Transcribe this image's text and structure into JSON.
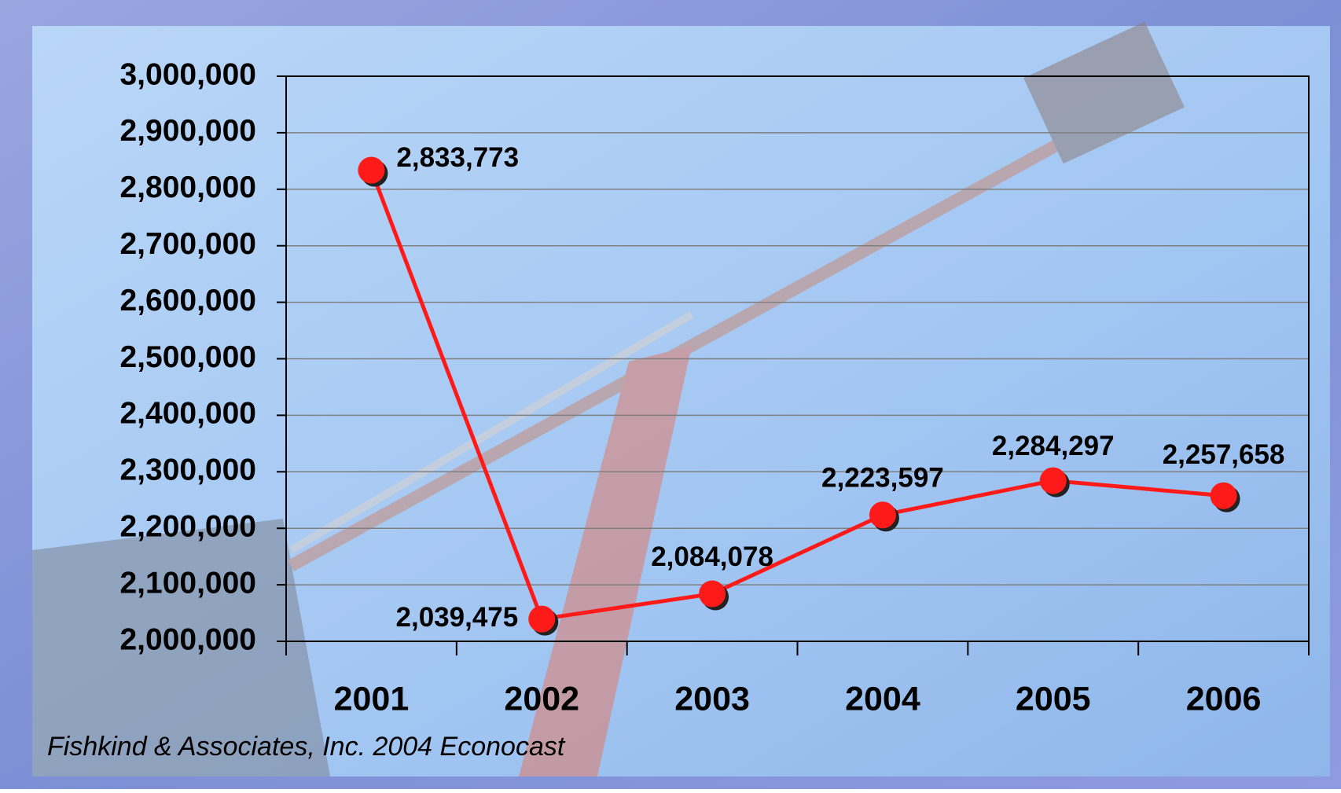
{
  "chart_data": {
    "type": "line",
    "categories": [
      "2001",
      "2002",
      "2003",
      "2004",
      "2005",
      "2006"
    ],
    "series": [
      {
        "color": "#ff1a1a",
        "values": [
          2833773,
          2039475,
          2084078,
          2223597,
          2284297,
          2257658
        ],
        "value_labels": [
          "2,833,773",
          "2,039,475",
          "2,084,078",
          "2,223,597",
          "2,284,297",
          "2,257,658"
        ]
      }
    ],
    "ylim": [
      2000000,
      3000000
    ],
    "yticks": [
      {
        "value": 2000000,
        "label": "2,000,000"
      },
      {
        "value": 2100000,
        "label": "2,100,000"
      },
      {
        "value": 2200000,
        "label": "2,200,000"
      },
      {
        "value": 2300000,
        "label": "2,300,000"
      },
      {
        "value": 2400000,
        "label": "2,400,000"
      },
      {
        "value": 2500000,
        "label": "2,500,000"
      },
      {
        "value": 2600000,
        "label": "2,600,000"
      },
      {
        "value": 2700000,
        "label": "2,700,000"
      },
      {
        "value": 2800000,
        "label": "2,800,000"
      },
      {
        "value": 2900000,
        "label": "2,900,000"
      },
      {
        "value": 3000000,
        "label": "3,000,000"
      }
    ],
    "grid": true,
    "source": "Fishkind & Associates, Inc. 2004 Econocast"
  }
}
